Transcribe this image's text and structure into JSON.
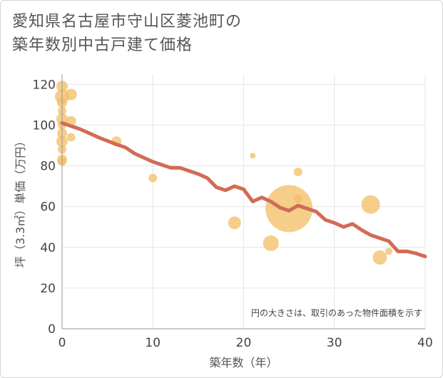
{
  "header": {
    "title_line1": "愛知県名古屋市守山区菱池町の",
    "title_line2": "築年数別中古戸建て価格"
  },
  "colors": {
    "bubble": "#f2bd63",
    "line": "#d26b55",
    "grid": "#e6e6e6",
    "axis": "#9a9a9a"
  },
  "chart_data": {
    "type": "scatter",
    "xlabel": "築年数（年）",
    "ylabel": "坪（3.3㎡）単価（万円）",
    "xlim": [
      0,
      40
    ],
    "ylim": [
      0,
      125
    ],
    "xticks": [
      "0",
      "10",
      "20",
      "30",
      "40"
    ],
    "yticks": [
      "0",
      "20",
      "40",
      "60",
      "80",
      "100",
      "120"
    ],
    "annotation": "円の大きさは、取引のあった物件面積を示す",
    "scatter": [
      {
        "x": 0,
        "y": 119,
        "size": 8
      },
      {
        "x": 0,
        "y": 114,
        "size": 10
      },
      {
        "x": 0,
        "y": 111,
        "size": 7
      },
      {
        "x": 0,
        "y": 107,
        "size": 6
      },
      {
        "x": 0,
        "y": 103,
        "size": 8
      },
      {
        "x": 0,
        "y": 100,
        "size": 6
      },
      {
        "x": 0,
        "y": 96,
        "size": 7
      },
      {
        "x": 0,
        "y": 92,
        "size": 8
      },
      {
        "x": 0,
        "y": 88,
        "size": 6
      },
      {
        "x": 0,
        "y": 83,
        "size": 7
      },
      {
        "x": 0,
        "y": 82,
        "size": 6
      },
      {
        "x": 1,
        "y": 115,
        "size": 8
      },
      {
        "x": 1,
        "y": 102,
        "size": 7
      },
      {
        "x": 1,
        "y": 94,
        "size": 6
      },
      {
        "x": 6,
        "y": 92,
        "size": 7
      },
      {
        "x": 10,
        "y": 74,
        "size": 6
      },
      {
        "x": 19,
        "y": 52,
        "size": 9
      },
      {
        "x": 21,
        "y": 85,
        "size": 4
      },
      {
        "x": 23,
        "y": 42,
        "size": 11
      },
      {
        "x": 25,
        "y": 59,
        "size": 33
      },
      {
        "x": 26,
        "y": 77,
        "size": 6
      },
      {
        "x": 26,
        "y": 64,
        "size": 6
      },
      {
        "x": 34,
        "y": 61,
        "size": 13
      },
      {
        "x": 35,
        "y": 35,
        "size": 10
      },
      {
        "x": 36,
        "y": 38,
        "size": 5
      }
    ],
    "series": [
      {
        "name": "trend",
        "x": [
          0,
          2,
          4,
          6,
          7,
          8,
          9,
          10,
          11,
          12,
          13,
          14,
          15,
          16,
          17,
          18,
          19,
          20,
          21,
          22,
          23,
          24,
          25,
          26,
          27,
          28,
          29,
          30,
          31,
          32,
          33,
          34,
          35,
          36,
          37,
          38,
          39,
          40
        ],
        "values": [
          101,
          98,
          94,
          90.5,
          89,
          86,
          84,
          82,
          80.5,
          79,
          79,
          77.5,
          76,
          74,
          69.5,
          68,
          70,
          68.5,
          62.5,
          64.5,
          62.5,
          59.5,
          58,
          60.5,
          59,
          57.5,
          53.5,
          52,
          50,
          51.5,
          48.5,
          46,
          44.5,
          43,
          38,
          38,
          37,
          35.5
        ]
      }
    ]
  }
}
